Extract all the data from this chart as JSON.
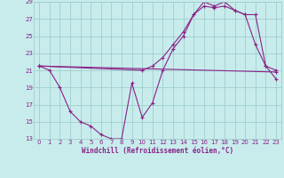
{
  "xlabel": "Windchill (Refroidissement éolien,°C)",
  "bg_color": "#c8ecec",
  "grid_color": "#a0cece",
  "line_color": "#882288",
  "xlim": [
    -0.5,
    23.5
  ],
  "ylim": [
    13,
    29
  ],
  "xticks": [
    0,
    1,
    2,
    3,
    4,
    5,
    6,
    7,
    8,
    9,
    10,
    11,
    12,
    13,
    14,
    15,
    16,
    17,
    18,
    19,
    20,
    21,
    22,
    23
  ],
  "yticks": [
    13,
    15,
    17,
    19,
    21,
    23,
    25,
    27,
    29
  ],
  "line1_x": [
    0,
    1,
    2,
    3,
    4,
    5,
    6,
    7,
    8,
    9,
    10,
    11,
    12,
    13,
    14,
    15,
    16,
    17,
    18,
    19,
    20,
    21,
    22,
    23
  ],
  "line1_y": [
    21.5,
    21.0,
    19.0,
    16.2,
    15.0,
    14.5,
    13.5,
    13.0,
    13.0,
    19.5,
    15.5,
    17.2,
    21.0,
    23.5,
    25.0,
    27.5,
    29.0,
    28.5,
    29.0,
    28.0,
    27.5,
    24.0,
    21.5,
    20.0
  ],
  "line2_x": [
    0,
    10,
    11,
    12,
    13,
    14,
    15,
    16,
    17,
    18,
    19,
    20,
    21,
    22,
    23
  ],
  "line2_y": [
    21.5,
    21.0,
    21.5,
    22.5,
    24.0,
    25.5,
    27.5,
    28.5,
    28.3,
    28.5,
    28.0,
    27.5,
    27.5,
    21.5,
    21.0
  ],
  "line3_x": [
    0,
    23
  ],
  "line3_y": [
    21.5,
    20.8
  ]
}
